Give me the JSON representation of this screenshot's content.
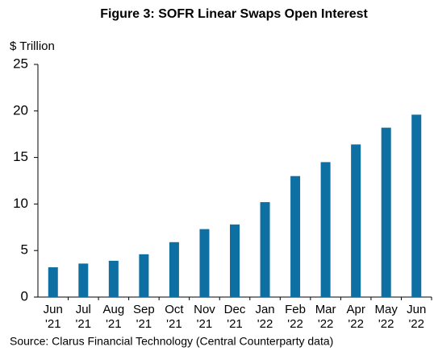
{
  "chart_data": {
    "type": "bar",
    "title": "Figure 3: SOFR Linear Swaps Open Interest",
    "y_label": "$ Trillion",
    "source": "Source: Clarus Financial Technology (Central Counterparty data)",
    "categories": [
      "Jun '21",
      "Jul '21",
      "Aug '21",
      "Sep '21",
      "Oct '21",
      "Nov '21",
      "Dec '21",
      "Jan '22",
      "Feb '22",
      "Mar '22",
      "Apr '22",
      "May '22",
      "Jun '22"
    ],
    "values": [
      3.2,
      3.6,
      3.9,
      4.6,
      5.9,
      7.3,
      7.8,
      10.2,
      13.0,
      14.5,
      16.4,
      18.2,
      19.6
    ],
    "color": "#0e6fa3",
    "ylim": [
      0,
      25
    ],
    "yticks": [
      0,
      5,
      10,
      15,
      20,
      25
    ],
    "grid": false
  }
}
